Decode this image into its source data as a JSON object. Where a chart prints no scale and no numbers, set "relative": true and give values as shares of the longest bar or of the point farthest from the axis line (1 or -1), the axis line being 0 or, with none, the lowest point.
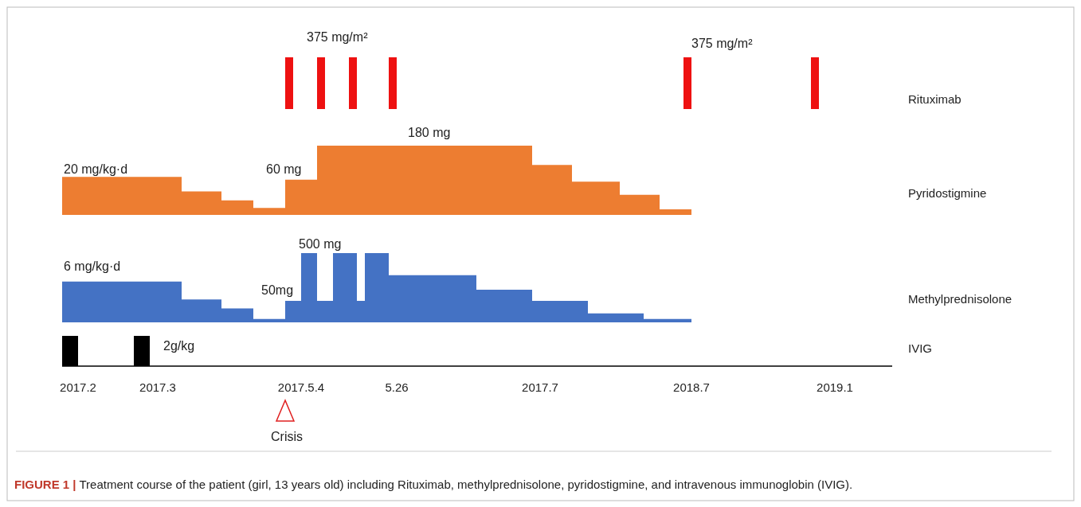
{
  "chart_data": [
    {
      "type": "area",
      "relative": true,
      "tick_labels": false,
      "categories": [
        null,
        null,
        "2017.2",
        null,
        null,
        null,
        null,
        null,
        null,
        null,
        null,
        null,
        "2017.3",
        null,
        null,
        null,
        null,
        null,
        null,
        null,
        null,
        null,
        null,
        null,
        null,
        null,
        null,
        null,
        null,
        null,
        "2017.5.4",
        null,
        null,
        null,
        null,
        null,
        null,
        null,
        null,
        null,
        null,
        null,
        "5.26",
        null,
        null,
        null,
        null,
        null,
        null,
        null,
        null,
        null,
        null,
        null,
        null,
        null,
        null,
        null,
        null,
        null,
        "2017.7",
        null,
        null,
        null,
        null,
        null,
        null,
        null,
        null,
        null,
        null,
        null,
        null,
        null,
        null,
        null,
        null,
        null,
        null,
        "2018.7",
        null,
        null,
        null,
        null,
        null,
        null,
        null,
        null,
        null,
        null,
        null,
        null,
        null,
        null,
        null,
        null,
        null,
        "2019.1",
        null,
        null,
        null,
        null,
        null,
        null
      ],
      "series": [
        {
          "name": "Rituximab",
          "color": "#ee1111",
          "values": [
            0,
            0,
            0,
            0,
            0,
            0,
            0,
            0,
            0,
            0,
            0,
            0,
            0,
            0,
            0,
            0,
            0,
            0,
            0,
            0,
            0,
            0,
            0,
            0,
            0,
            0,
            0,
            0,
            1,
            0,
            0,
            0,
            1,
            0,
            0,
            0,
            1,
            0,
            0,
            0,
            0,
            1,
            0,
            0,
            0,
            0,
            0,
            0,
            0,
            0,
            0,
            0,
            0,
            0,
            0,
            0,
            0,
            0,
            0,
            0,
            0,
            0,
            0,
            0,
            0,
            0,
            0,
            0,
            0,
            0,
            0,
            0,
            0,
            0,
            0,
            0,
            0,
            0,
            1,
            0,
            0,
            0,
            0,
            0,
            0,
            0,
            0,
            0,
            0,
            0,
            0,
            0,
            0,
            0,
            1,
            0,
            0,
            0,
            0,
            0,
            0,
            0,
            0,
            0
          ]
        }
      ],
      "annotations": [
        "375 mg/m²",
        "375 mg/m²"
      ]
    },
    {
      "type": "area",
      "relative": true,
      "tick_labels": false,
      "categories": [
        null,
        null,
        "2017.2",
        null,
        null,
        null,
        null,
        null,
        null,
        null,
        null,
        null,
        "2017.3",
        null,
        null,
        null,
        null,
        null,
        null,
        null,
        null,
        null,
        null,
        null,
        null,
        null,
        null,
        null,
        null,
        null,
        "2017.5.4",
        null,
        null,
        null,
        null,
        null,
        null,
        null,
        null,
        null,
        null,
        null,
        "5.26",
        null,
        null,
        null,
        null,
        null,
        null,
        null,
        null,
        null,
        null,
        null,
        null,
        null,
        null,
        null,
        null,
        null,
        "2017.7",
        null,
        null,
        null,
        null,
        null,
        null,
        null,
        null,
        null,
        null,
        null,
        null,
        null,
        null,
        null,
        null,
        null,
        null,
        "2018.7",
        null,
        null,
        null,
        null,
        null,
        null,
        null,
        null,
        null,
        null,
        null,
        null,
        null,
        null,
        null,
        null,
        null,
        "2019.1",
        null,
        null,
        null,
        null,
        null,
        null
      ],
      "series": [
        {
          "name": "Pyridostigmine",
          "color": "#ed7d31",
          "values": [
            0.55,
            0.55,
            0.55,
            0.55,
            0.55,
            0.55,
            0.55,
            0.55,
            0.55,
            0.55,
            0.55,
            0.55,
            0.55,
            0.55,
            0.55,
            0.34,
            0.34,
            0.34,
            0.34,
            0.34,
            0.21,
            0.21,
            0.21,
            0.21,
            0.1,
            0.1,
            0.1,
            0.1,
            0.51,
            0.51,
            0.51,
            0.51,
            1,
            1,
            1,
            1,
            1,
            1,
            1,
            1,
            1,
            1,
            1,
            1,
            1,
            1,
            1,
            1,
            1,
            1,
            1,
            1,
            1,
            1,
            1,
            1,
            1,
            1,
            1,
            0.72,
            0.72,
            0.72,
            0.72,
            0.72,
            0.48,
            0.48,
            0.48,
            0.48,
            0.48,
            0.48,
            0.29,
            0.29,
            0.29,
            0.29,
            0.29,
            0.08,
            0.08,
            0.08,
            0.08,
            0,
            0,
            0,
            0,
            0,
            0,
            0,
            0,
            0,
            0,
            0,
            0,
            0,
            0,
            0,
            0,
            0,
            0,
            0,
            0,
            0,
            0,
            0,
            0,
            0
          ]
        }
      ],
      "annotations": [
        "20 mg/kg·d",
        "60 mg",
        "180 mg"
      ]
    },
    {
      "type": "area",
      "relative": true,
      "tick_labels": false,
      "categories": [
        null,
        null,
        "2017.2",
        null,
        null,
        null,
        null,
        null,
        null,
        null,
        null,
        null,
        "2017.3",
        null,
        null,
        null,
        null,
        null,
        null,
        null,
        null,
        null,
        null,
        null,
        null,
        null,
        null,
        null,
        null,
        null,
        "2017.5.4",
        null,
        null,
        null,
        null,
        null,
        null,
        null,
        null,
        null,
        null,
        null,
        "5.26",
        null,
        null,
        null,
        null,
        null,
        null,
        null,
        null,
        null,
        null,
        null,
        null,
        null,
        null,
        null,
        null,
        null,
        "2017.7",
        null,
        null,
        null,
        null,
        null,
        null,
        null,
        null,
        null,
        null,
        null,
        null,
        null,
        null,
        null,
        null,
        null,
        null,
        "2018.7",
        null,
        null,
        null,
        null,
        null,
        null,
        null,
        null,
        null,
        null,
        null,
        null,
        null,
        null,
        null,
        null,
        null,
        "2019.1",
        null,
        null,
        null,
        null,
        null,
        null
      ],
      "series": [
        {
          "name": "Methylprednisolone",
          "color": "#4472c4",
          "values": [
            0.59,
            0.59,
            0.59,
            0.59,
            0.59,
            0.59,
            0.59,
            0.59,
            0.59,
            0.59,
            0.59,
            0.59,
            0.59,
            0.59,
            0.59,
            0.33,
            0.33,
            0.33,
            0.33,
            0.33,
            0.2,
            0.2,
            0.2,
            0.2,
            0.05,
            0.05,
            0.05,
            0.05,
            0.31,
            0.31,
            1,
            1,
            0.31,
            0.31,
            1,
            1,
            1,
            0.31,
            1,
            1,
            1,
            0.68,
            0.68,
            0.68,
            0.68,
            0.68,
            0.68,
            0.68,
            0.68,
            0.68,
            0.68,
            0.68,
            0.47,
            0.47,
            0.47,
            0.47,
            0.47,
            0.47,
            0.47,
            0.31,
            0.31,
            0.31,
            0.31,
            0.31,
            0.31,
            0.31,
            0.13,
            0.13,
            0.13,
            0.13,
            0.13,
            0.13,
            0.13,
            0.05,
            0.05,
            0.05,
            0.05,
            0.05,
            0.05,
            0,
            0,
            0,
            0,
            0,
            0,
            0,
            0,
            0,
            0,
            0,
            0,
            0,
            0,
            0,
            0,
            0,
            0,
            0,
            0,
            0,
            0,
            0,
            0,
            0
          ]
        }
      ],
      "annotations": [
        "6 mg/kg·d",
        "500 mg",
        "50mg"
      ]
    },
    {
      "type": "area",
      "relative": true,
      "tick_labels": "x",
      "categories": [
        null,
        null,
        "2017.2",
        null,
        null,
        null,
        null,
        null,
        null,
        null,
        null,
        null,
        "2017.3",
        null,
        null,
        null,
        null,
        null,
        null,
        null,
        null,
        null,
        null,
        null,
        null,
        null,
        null,
        null,
        null,
        null,
        "2017.5.4",
        null,
        null,
        null,
        null,
        null,
        null,
        null,
        null,
        null,
        null,
        null,
        "5.26",
        null,
        null,
        null,
        null,
        null,
        null,
        null,
        null,
        null,
        null,
        null,
        null,
        null,
        null,
        null,
        null,
        null,
        "2017.7",
        null,
        null,
        null,
        null,
        null,
        null,
        null,
        null,
        null,
        null,
        null,
        null,
        null,
        null,
        null,
        null,
        null,
        null,
        "2018.7",
        null,
        null,
        null,
        null,
        null,
        null,
        null,
        null,
        null,
        null,
        null,
        null,
        null,
        null,
        null,
        null,
        null,
        "2019.1",
        null,
        null,
        null,
        null,
        null,
        null
      ],
      "series": [
        {
          "name": "IVIG",
          "color": "#000000",
          "values": [
            1,
            1,
            0,
            0,
            0,
            0,
            0,
            0,
            0,
            1,
            1,
            0,
            0,
            0,
            0,
            0,
            0,
            0,
            0,
            0,
            0,
            0,
            0,
            0,
            0,
            0,
            0,
            0,
            0,
            0,
            0,
            0,
            0,
            0,
            0,
            0,
            0,
            0,
            0,
            0,
            0,
            0,
            0,
            0,
            0,
            0,
            0,
            0,
            0,
            0,
            0,
            0,
            0,
            0,
            0,
            0,
            0,
            0,
            0,
            0,
            0,
            0,
            0,
            0,
            0,
            0,
            0,
            0,
            0,
            0,
            0,
            0,
            0,
            0,
            0,
            0,
            0,
            0,
            0,
            0,
            0,
            0,
            0,
            0,
            0,
            0,
            0,
            0,
            0,
            0,
            0,
            0,
            0,
            0,
            0,
            0,
            0,
            0,
            0,
            0,
            0,
            0,
            0,
            0
          ]
        }
      ],
      "annotations": [
        "2g/kg",
        "Crisis",
        "FIGURE 1 | Treatment course of the patient (girl, 13 years old) including Rituximab, methylprednisolone, pyridostigmine, and intravenous immunoglobin (IVIG)."
      ]
    }
  ]
}
